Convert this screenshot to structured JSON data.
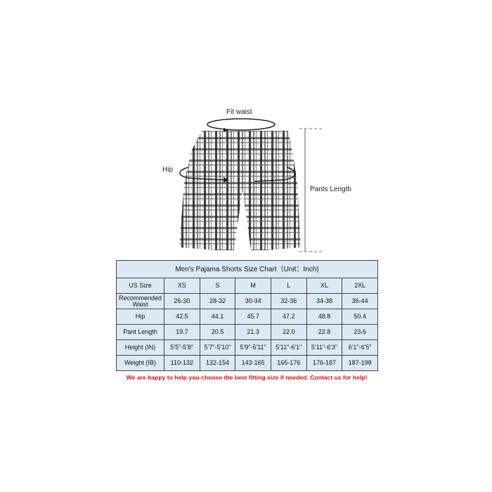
{
  "diagram": {
    "fit_waist_label": "Fit waist",
    "hip_label": "Hip",
    "pants_length_label": "Pants Length"
  },
  "size_chart": {
    "title": "Men's Pajama Shorts Size Chart（Unit：Inch)",
    "header": [
      "US Size",
      "XS",
      "S",
      "M",
      "L",
      "XL",
      "2XL"
    ],
    "rows": [
      {
        "label": "Recommended Waist",
        "values": [
          "26-30",
          "28-32",
          "30-34",
          "32-36",
          "34-38",
          "36-44"
        ]
      },
      {
        "label": "Hip",
        "values": [
          "42.5",
          "44.1",
          "45.7",
          "47.2",
          "48.8",
          "50.4"
        ]
      },
      {
        "label": "Pant Length",
        "values": [
          "19.7",
          "20.5",
          "21.3",
          "22.0",
          "22.8",
          "23.6"
        ]
      },
      {
        "label": "Height (IN)",
        "values": [
          "5'5\"-5'8\"",
          "5'7\"-5'10\"",
          "5'9\"-5'11\"",
          "5'11\"-6'1\"",
          "5'11\"-6'3\"",
          "6'1\"-6'5\""
        ]
      },
      {
        "label": "Weight (IB)",
        "values": [
          "110-132",
          "132-154",
          "143-165",
          "165-176",
          "176-187",
          "187-198"
        ]
      }
    ]
  },
  "note": "We are happy to help you choose the best fitting size if needed. Contact us for help!",
  "colors": {
    "table_fill": "#dbe8f5",
    "note": "#e01010"
  }
}
